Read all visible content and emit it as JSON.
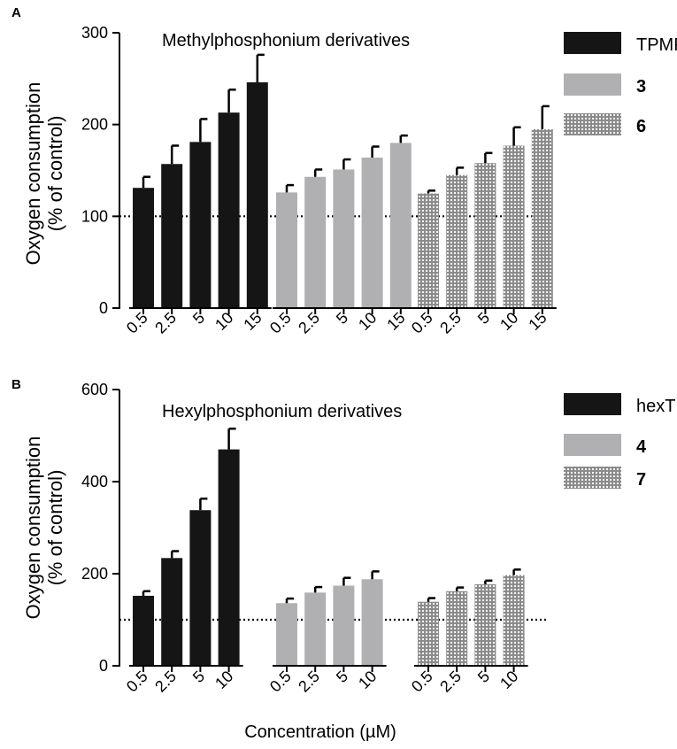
{
  "colors": {
    "series1": "#151515",
    "series2": "#b0b0b2",
    "series3": "#8a8a8a",
    "dots": "#ffffff",
    "axis": "#000000"
  },
  "xlabel": "Concentration (µM)",
  "chart_data": [
    {
      "type": "bar",
      "panel": "A",
      "title": "Methylphosphonium derivatives",
      "ylabel_line1": "Oxygen consumption",
      "ylabel_line2": "(% of control)",
      "ylim": [
        0,
        300
      ],
      "yticks": [
        "0",
        "100",
        "200",
        "300"
      ],
      "reference_line": 100,
      "categories": [
        "0.5",
        "2.5",
        "5",
        "10",
        "15"
      ],
      "series": [
        {
          "name": "TPMP",
          "bold": false,
          "pattern": "solid-dark",
          "values": [
            131,
            157,
            181,
            213,
            246
          ],
          "errors": [
            12,
            20,
            25,
            25,
            30
          ]
        },
        {
          "name": "3",
          "bold": true,
          "pattern": "solid-light",
          "values": [
            126,
            143,
            151,
            164,
            180
          ],
          "errors": [
            8,
            8,
            11,
            12,
            8
          ]
        },
        {
          "name": "6",
          "bold": true,
          "pattern": "dotted",
          "values": [
            125,
            145,
            158,
            177,
            195
          ],
          "errors": [
            3,
            8,
            11,
            20,
            25
          ]
        }
      ]
    },
    {
      "type": "bar",
      "panel": "B",
      "title": "Hexylphosphonium derivatives",
      "ylabel_line1": "Oxygen consumption",
      "ylabel_line2": "(% of control)",
      "ylim": [
        0,
        600
      ],
      "yticks": [
        "0",
        "200",
        "400",
        "600"
      ],
      "reference_line": 100,
      "categories": [
        "0.5",
        "2.5",
        "5",
        "10"
      ],
      "series": [
        {
          "name": "hexTPP",
          "bold": false,
          "pattern": "solid-dark",
          "values": [
            152,
            234,
            338,
            470
          ],
          "errors": [
            10,
            15,
            25,
            45
          ]
        },
        {
          "name": "4",
          "bold": true,
          "pattern": "solid-light",
          "values": [
            136,
            159,
            174,
            188
          ],
          "errors": [
            10,
            12,
            17,
            17
          ]
        },
        {
          "name": "7",
          "bold": true,
          "pattern": "dotted",
          "values": [
            139,
            162,
            177,
            197
          ],
          "errors": [
            8,
            8,
            8,
            12
          ]
        }
      ]
    }
  ]
}
